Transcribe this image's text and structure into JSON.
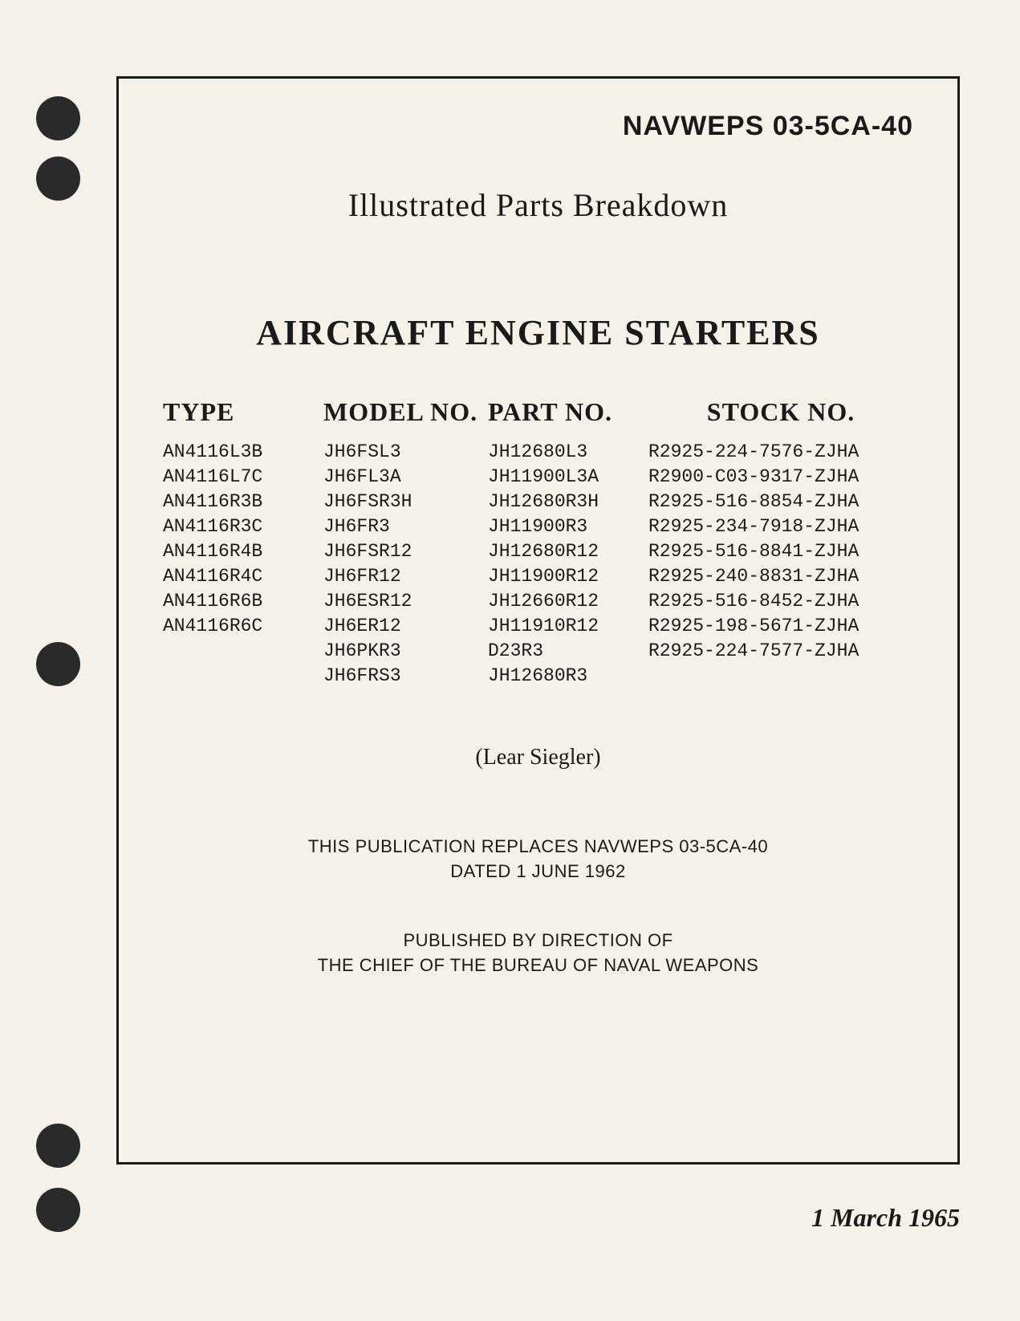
{
  "document": {
    "number": "NAVWEPS 03-5CA-40",
    "subtitle": "Illustrated Parts Breakdown",
    "title": "AIRCRAFT ENGINE STARTERS",
    "manufacturer": "(Lear Siegler)",
    "replaces_line1": "THIS PUBLICATION REPLACES NAVWEPS 03-5CA-40",
    "replaces_line2": "DATED 1 JUNE 1962",
    "published_line1": "PUBLISHED BY DIRECTION OF",
    "published_line2": "THE CHIEF OF THE BUREAU OF NAVAL WEAPONS",
    "date": "1 March 1965"
  },
  "columns": {
    "headers": {
      "type": "TYPE",
      "model": "MODEL NO.",
      "part": "PART NO.",
      "stock": "STOCK NO."
    },
    "type": [
      "AN4116L3B",
      "AN4116L7C",
      "AN4116R3B",
      "AN4116R3C",
      "AN4116R4B",
      "AN4116R4C",
      "AN4116R6B",
      "AN4116R6C"
    ],
    "model": [
      "JH6FSL3",
      "JH6FL3A",
      "JH6FSR3H",
      "JH6FR3",
      "JH6FSR12",
      "JH6FR12",
      "JH6ESR12",
      "JH6ER12",
      "JH6PKR3",
      "JH6FRS3"
    ],
    "part": [
      "JH12680L3",
      "JH11900L3A",
      "JH12680R3H",
      "JH11900R3",
      "JH12680R12",
      "JH11900R12",
      "JH12660R12",
      "JH11910R12",
      "D23R3",
      "JH12680R3"
    ],
    "stock": [
      "R2925-224-7576-ZJHA",
      "R2900-C03-9317-ZJHA",
      "R2925-516-8854-ZJHA",
      "R2925-234-7918-ZJHA",
      "R2925-516-8841-ZJHA",
      "R2925-240-8831-ZJHA",
      "R2925-516-8452-ZJHA",
      "R2925-198-5671-ZJHA",
      "R2925-224-7577-ZJHA"
    ]
  },
  "styling": {
    "page_bg": "#f5f1e8",
    "text_color": "#1a1a1a",
    "hole_color": "#2a2a2a",
    "border_color": "#1a1a1a",
    "border_width": 3,
    "doc_number_fontsize": 34,
    "subtitle_fontsize": 40,
    "title_fontsize": 44,
    "header_fontsize": 32,
    "data_fontsize": 23,
    "manufacturer_fontsize": 28,
    "body_text_fontsize": 22,
    "date_fontsize": 32
  }
}
